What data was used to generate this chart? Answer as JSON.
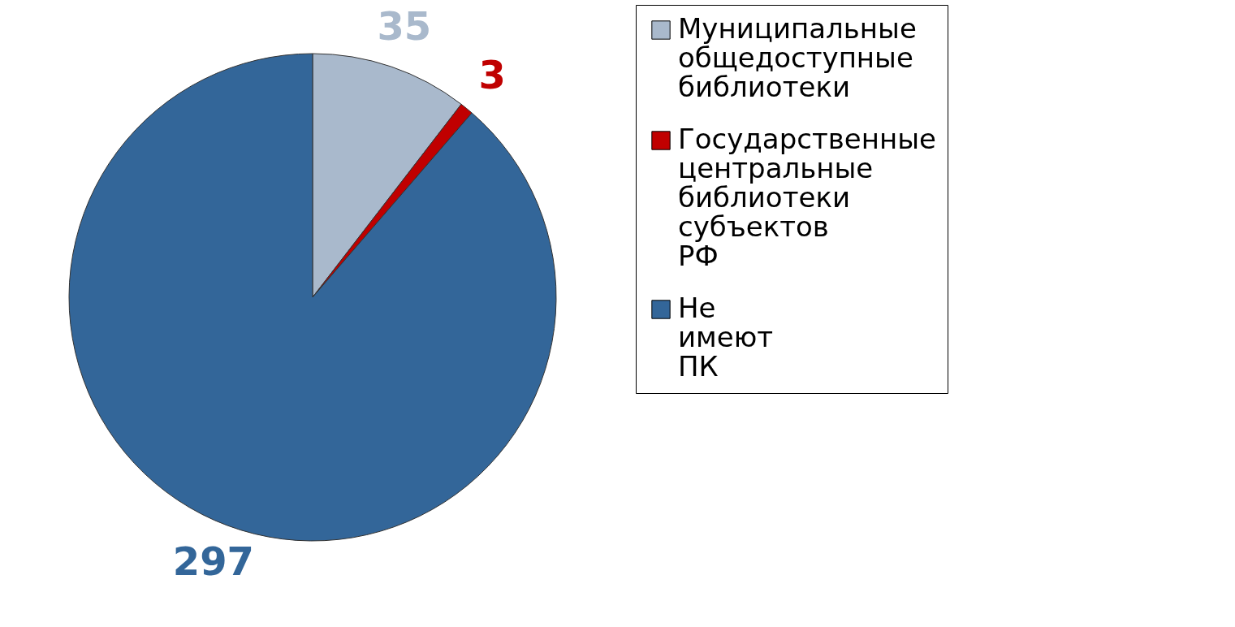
{
  "chart_data": {
    "type": "pie",
    "categories": [
      "Муниципальные общедоступные библиотеки",
      "Государственные центральные библиотеки субъектов РФ",
      "Не имеют ПК"
    ],
    "values": [
      35,
      3,
      297
    ],
    "colors": [
      "#a9b9cc",
      "#c00000",
      "#336699"
    ],
    "data_labels": true,
    "legend": "right"
  }
}
